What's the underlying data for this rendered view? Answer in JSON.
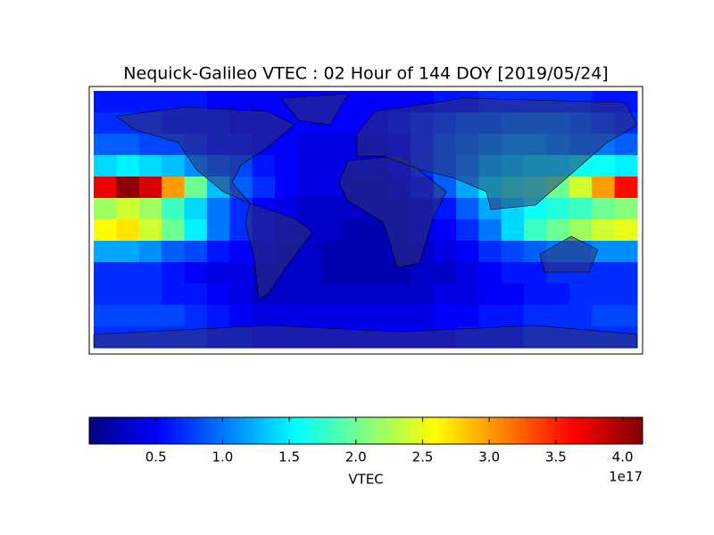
{
  "chart_data": {
    "type": "heatmap",
    "title": "Nequick-Galileo VTEC : 02 Hour of 144 DOY [2019/05/24]",
    "colormap": "jet",
    "xlim": [
      -180,
      180
    ],
    "ylim": [
      -90,
      90
    ],
    "z": [
      [
        0.6,
        0.6,
        0.6,
        0.6,
        0.6,
        0.5,
        0.5,
        0.5,
        0.5,
        0.5,
        0.5,
        0.5,
        0.5,
        0.5,
        0.5,
        0.6,
        0.6,
        0.7,
        0.7,
        0.7,
        0.7,
        0.7,
        0.6,
        0.6
      ],
      [
        0.7,
        0.7,
        0.7,
        0.6,
        0.6,
        0.6,
        0.5,
        0.5,
        0.5,
        0.5,
        0.5,
        0.5,
        0.5,
        0.6,
        0.7,
        0.8,
        0.9,
        0.9,
        1.0,
        1.0,
        1.0,
        0.9,
        0.8,
        0.7
      ],
      [
        0.9,
        0.9,
        0.8,
        0.8,
        0.7,
        0.6,
        0.6,
        0.5,
        0.5,
        0.4,
        0.4,
        0.4,
        0.4,
        0.5,
        0.7,
        0.9,
        1.0,
        1.1,
        1.2,
        1.2,
        1.1,
        1.0,
        1.0,
        0.9
      ],
      [
        1.4,
        1.5,
        1.4,
        1.3,
        1.1,
        0.9,
        0.8,
        0.6,
        0.5,
        0.4,
        0.4,
        0.4,
        0.4,
        0.5,
        0.7,
        0.9,
        1.1,
        1.3,
        1.4,
        1.5,
        1.5,
        1.6,
        1.6,
        1.5
      ],
      [
        3.7,
        4.1,
        3.8,
        3.0,
        2.0,
        1.3,
        0.9,
        0.7,
        0.5,
        0.4,
        0.4,
        0.3,
        0.3,
        0.4,
        0.6,
        0.9,
        1.2,
        1.5,
        1.7,
        1.8,
        2.0,
        2.4,
        3.0,
        3.6
      ],
      [
        2.2,
        2.4,
        2.2,
        1.8,
        1.4,
        1.0,
        0.7,
        0.5,
        0.4,
        0.3,
        0.3,
        0.3,
        0.3,
        0.3,
        0.4,
        0.6,
        0.9,
        1.2,
        1.4,
        1.6,
        1.7,
        1.8,
        2.0,
        2.1
      ],
      [
        2.6,
        2.7,
        2.4,
        2.0,
        1.5,
        1.0,
        0.7,
        0.5,
        0.4,
        0.3,
        0.3,
        0.2,
        0.2,
        0.3,
        0.4,
        0.5,
        0.7,
        1.0,
        1.4,
        1.8,
        2.0,
        2.2,
        2.4,
        2.5
      ],
      [
        1.2,
        1.2,
        1.1,
        0.9,
        0.8,
        0.6,
        0.5,
        0.4,
        0.3,
        0.3,
        0.2,
        0.2,
        0.2,
        0.3,
        0.3,
        0.4,
        0.5,
        0.7,
        0.8,
        0.9,
        1.0,
        1.0,
        1.1,
        1.1
      ],
      [
        0.7,
        0.7,
        0.7,
        0.6,
        0.5,
        0.4,
        0.4,
        0.3,
        0.3,
        0.3,
        0.2,
        0.2,
        0.2,
        0.2,
        0.3,
        0.3,
        0.4,
        0.5,
        0.6,
        0.6,
        0.7,
        0.7,
        0.7,
        0.7
      ],
      [
        0.7,
        0.7,
        0.7,
        0.6,
        0.6,
        0.5,
        0.4,
        0.3,
        0.3,
        0.3,
        0.3,
        0.3,
        0.3,
        0.3,
        0.3,
        0.4,
        0.4,
        0.5,
        0.5,
        0.6,
        0.6,
        0.7,
        0.7,
        0.7
      ],
      [
        0.8,
        0.8,
        0.8,
        0.8,
        0.7,
        0.6,
        0.5,
        0.4,
        0.4,
        0.4,
        0.4,
        0.4,
        0.4,
        0.4,
        0.4,
        0.5,
        0.5,
        0.6,
        0.6,
        0.7,
        0.7,
        0.7,
        0.8,
        0.8
      ],
      [
        0.7,
        0.7,
        0.7,
        0.7,
        0.7,
        0.6,
        0.6,
        0.5,
        0.5,
        0.5,
        0.5,
        0.5,
        0.5,
        0.5,
        0.5,
        0.5,
        0.6,
        0.6,
        0.6,
        0.7,
        0.7,
        0.7,
        0.7,
        0.7
      ]
    ],
    "clim": [
      0,
      4.15
    ],
    "cticks": [
      0.5,
      {
        "value": 1,
        "label": "1.0"
      },
      1.5,
      {
        "value": 2,
        "label": "2.0"
      },
      2.5,
      {
        "value": 3,
        "label": "3.0"
      },
      3.5,
      {
        "value": 4,
        "label": "4.0"
      }
    ],
    "colorbar_label": "VTEC",
    "colorbar_offset": "1e17"
  }
}
